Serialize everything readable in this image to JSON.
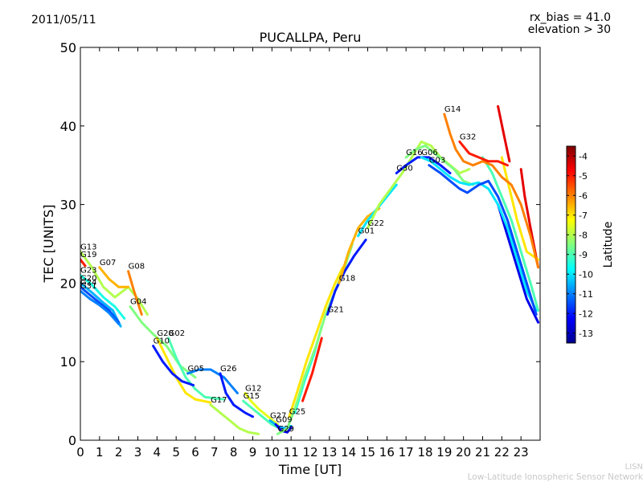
{
  "header": {
    "date": "2011/05/11",
    "rx_bias": "rx_bias = 41.0",
    "elevation": "elevation > 30"
  },
  "footer": {
    "org_short": "LISN",
    "org_long": "Low-Latitude Ionospheric Sensor Network"
  },
  "chart_data": {
    "type": "scatter",
    "title": "PUCALLPA, Peru",
    "xlabel": "Time [UT]",
    "ylabel": "TEC [UNITS]",
    "xlim": [
      0,
      24
    ],
    "ylim": [
      0,
      50
    ],
    "x_ticks": [
      "0",
      "1",
      "2",
      "3",
      "4",
      "5",
      "6",
      "7",
      "8",
      "9",
      "10",
      "11",
      "12",
      "13",
      "14",
      "15",
      "16",
      "17",
      "18",
      "19",
      "20",
      "21",
      "22",
      "23"
    ],
    "y_ticks": [
      "0",
      "10",
      "20",
      "30",
      "40",
      "50"
    ],
    "grid": false,
    "colorbar": {
      "label": "Latitude",
      "min": -13.5,
      "max": -3.5,
      "ticks": [
        "-4",
        "-5",
        "-6",
        "-7",
        "-8",
        "-9",
        "-10",
        "-11",
        "-12",
        "-13"
      ],
      "colors": [
        "#00008f",
        "#0000ff",
        "#0080ff",
        "#00ffff",
        "#80ff80",
        "#ffff00",
        "#ff8000",
        "#ff0000",
        "#800000"
      ]
    },
    "series": [
      {
        "name": "G13",
        "lat": -8.0,
        "points": [
          [
            0.0,
            24.0
          ],
          [
            0.6,
            22.0
          ],
          [
            1.2,
            19.5
          ],
          [
            1.8,
            18.2
          ],
          [
            2.5,
            19.5
          ],
          [
            3.0,
            18.0
          ],
          [
            3.5,
            16.0
          ]
        ]
      },
      {
        "name": "G19",
        "lat": -5.0,
        "points": [
          [
            0.0,
            23.0
          ],
          [
            0.25,
            22.2
          ]
        ]
      },
      {
        "name": "G23",
        "lat": -9.5,
        "points": [
          [
            0.0,
            21.0
          ],
          [
            0.6,
            19.8
          ],
          [
            1.2,
            18.2
          ],
          [
            1.8,
            17.0
          ],
          [
            2.3,
            15.5
          ]
        ]
      },
      {
        "name": "G20",
        "lat": -10.5,
        "points": [
          [
            0.0,
            20.0
          ],
          [
            0.6,
            18.8
          ],
          [
            1.2,
            17.5
          ],
          [
            1.7,
            16.5
          ],
          [
            2.1,
            14.5
          ]
        ]
      },
      {
        "name": "G24",
        "lat": -11.5,
        "points": [
          [
            0.0,
            19.5
          ],
          [
            0.5,
            18.5
          ],
          [
            1.0,
            17.5
          ],
          [
            1.5,
            16.5
          ],
          [
            2.0,
            15.0
          ]
        ]
      },
      {
        "name": "G31",
        "lat": -11.0,
        "points": [
          [
            0.0,
            19.0
          ],
          [
            0.5,
            18.0
          ],
          [
            1.0,
            17.2
          ],
          [
            1.5,
            16.2
          ],
          [
            2.0,
            14.8
          ]
        ]
      },
      {
        "name": "G07",
        "lat": -6.5,
        "points": [
          [
            1.0,
            22.0
          ],
          [
            1.5,
            20.5
          ],
          [
            2.0,
            19.5
          ],
          [
            2.5,
            19.5
          ]
        ]
      },
      {
        "name": "G08",
        "lat": -6.0,
        "points": [
          [
            2.5,
            21.5
          ],
          [
            2.8,
            19.0
          ],
          [
            3.0,
            17.5
          ],
          [
            3.2,
            16.0
          ]
        ]
      },
      {
        "name": "G04",
        "lat": -8.5,
        "points": [
          [
            2.6,
            17.0
          ],
          [
            3.2,
            15.0
          ],
          [
            3.8,
            13.5
          ],
          [
            4.5,
            12.0
          ],
          [
            5.2,
            9.5
          ],
          [
            6.0,
            8.0
          ]
        ]
      },
      {
        "name": "G28",
        "lat": -7.0,
        "points": [
          [
            4.0,
            13.0
          ],
          [
            4.5,
            10.5
          ],
          [
            5.0,
            8.0
          ],
          [
            5.5,
            6.0
          ],
          [
            6.0,
            5.2
          ],
          [
            6.8,
            4.8
          ]
        ]
      },
      {
        "name": "G02",
        "lat": -9.0,
        "points": [
          [
            4.6,
            13.0
          ],
          [
            5.0,
            10.5
          ],
          [
            5.5,
            8.0
          ],
          [
            6.0,
            6.5
          ],
          [
            6.5,
            5.5
          ],
          [
            7.5,
            5.2
          ]
        ]
      },
      {
        "name": "G10",
        "lat": -12.0,
        "points": [
          [
            3.8,
            12.0
          ],
          [
            4.3,
            10.0
          ],
          [
            4.8,
            8.5
          ],
          [
            5.3,
            7.5
          ],
          [
            5.9,
            7.0
          ]
        ]
      },
      {
        "name": "G05",
        "lat": -11.0,
        "points": [
          [
            5.6,
            8.5
          ],
          [
            6.2,
            9.0
          ],
          [
            6.8,
            9.0
          ],
          [
            7.5,
            8.0
          ],
          [
            8.2,
            6.0
          ]
        ]
      },
      {
        "name": "G26",
        "lat": -12.0,
        "points": [
          [
            7.3,
            8.5
          ],
          [
            7.6,
            6.0
          ],
          [
            8.0,
            4.5
          ],
          [
            8.6,
            3.5
          ],
          [
            9.0,
            3.0
          ]
        ]
      },
      {
        "name": "G12",
        "lat": -7.5,
        "points": [
          [
            8.6,
            6.0
          ],
          [
            8.9,
            5.0
          ],
          [
            9.3,
            4.0
          ],
          [
            9.8,
            3.0
          ],
          [
            10.3,
            2.0
          ]
        ]
      },
      {
        "name": "G15",
        "lat": -9.0,
        "points": [
          [
            8.5,
            5.0
          ],
          [
            9.0,
            4.0
          ],
          [
            9.5,
            3.0
          ],
          [
            10.0,
            2.0
          ],
          [
            10.4,
            1.5
          ]
        ]
      },
      {
        "name": "G17",
        "lat": -8.0,
        "points": [
          [
            6.8,
            4.5
          ],
          [
            7.3,
            3.5
          ],
          [
            7.8,
            2.5
          ],
          [
            8.3,
            1.5
          ],
          [
            8.8,
            1.0
          ],
          [
            9.3,
            0.8
          ]
        ]
      },
      {
        "name": "G27",
        "lat": -10.5,
        "points": [
          [
            9.9,
            2.5
          ],
          [
            10.3,
            1.8
          ],
          [
            10.7,
            1.5
          ],
          [
            11.0,
            1.8
          ]
        ]
      },
      {
        "name": "G09",
        "lat": -12.5,
        "points": [
          [
            10.2,
            2.0
          ],
          [
            10.5,
            1.2
          ],
          [
            10.8,
            1.0
          ],
          [
            11.0,
            1.6
          ]
        ]
      },
      {
        "name": "G29",
        "lat": -8.5,
        "points": [
          [
            10.3,
            0.8
          ],
          [
            10.8,
            1.5
          ],
          [
            11.2,
            4.0
          ],
          [
            11.7,
            8.0
          ],
          [
            12.3,
            12.0
          ],
          [
            12.8,
            16.0
          ],
          [
            13.3,
            19.0
          ],
          [
            13.8,
            22.0
          ],
          [
            14.2,
            25.0
          ]
        ]
      },
      {
        "name": "G25",
        "lat": -7.0,
        "points": [
          [
            10.9,
            3.0
          ],
          [
            11.3,
            6.0
          ],
          [
            11.8,
            10.0
          ],
          [
            12.3,
            13.5
          ],
          [
            12.8,
            17.0
          ],
          [
            13.3,
            20.0
          ],
          [
            13.7,
            22.0
          ]
        ]
      },
      {
        "name": "G21",
        "lat": -12.0,
        "points": [
          [
            12.9,
            16.0
          ],
          [
            13.3,
            19.0
          ],
          [
            13.8,
            21.5
          ],
          [
            14.3,
            23.5
          ],
          [
            14.9,
            25.5
          ]
        ]
      },
      {
        "name": "G18",
        "lat": -6.5,
        "points": [
          [
            13.5,
            20.0
          ],
          [
            14.0,
            24.0
          ],
          [
            14.5,
            27.0
          ],
          [
            15.0,
            28.5
          ],
          [
            15.6,
            29.5
          ]
        ]
      },
      {
        "name": "G01",
        "lat": -10.0,
        "points": [
          [
            14.5,
            26.0
          ],
          [
            15.0,
            28.0
          ],
          [
            15.5,
            29.5
          ],
          [
            16.0,
            31.0
          ],
          [
            16.5,
            32.5
          ]
        ]
      },
      {
        "name": "G22",
        "lat": -8.0,
        "points": [
          [
            15.0,
            27.0
          ],
          [
            15.6,
            30.0
          ],
          [
            16.2,
            32.0
          ],
          [
            16.8,
            34.0
          ],
          [
            17.3,
            36.0
          ],
          [
            17.8,
            38.0
          ],
          [
            18.3,
            37.5
          ],
          [
            18.8,
            36.0
          ],
          [
            19.3,
            35.0
          ],
          [
            19.8,
            34.0
          ],
          [
            20.3,
            34.5
          ]
        ]
      },
      {
        "name": "G30",
        "lat": -12.0,
        "points": [
          [
            16.5,
            34.0
          ],
          [
            17.0,
            35.0
          ],
          [
            17.6,
            36.0
          ],
          [
            18.2,
            36.0
          ],
          [
            18.8,
            35.0
          ],
          [
            19.3,
            34.0
          ]
        ]
      },
      {
        "name": "G16",
        "lat": -8.5,
        "points": [
          [
            17.0,
            36.0
          ],
          [
            17.5,
            37.0
          ],
          [
            18.0,
            37.5
          ],
          [
            18.5,
            36.5
          ],
          [
            19.0,
            35.5
          ],
          [
            19.5,
            34.5
          ],
          [
            20.0,
            33.0
          ],
          [
            20.5,
            32.5
          ]
        ]
      },
      {
        "name": "G06",
        "lat": -10.0,
        "points": [
          [
            17.8,
            36.0
          ],
          [
            18.3,
            35.5
          ],
          [
            18.8,
            34.5
          ],
          [
            19.3,
            33.5
          ],
          [
            19.8,
            32.8
          ],
          [
            20.3,
            32.5
          ],
          [
            20.8,
            32.8
          ],
          [
            21.3,
            32.0
          ],
          [
            21.8,
            30.0
          ],
          [
            22.3,
            27.0
          ],
          [
            22.8,
            23.0
          ],
          [
            23.3,
            19.0
          ],
          [
            23.8,
            16.5
          ]
        ]
      },
      {
        "name": "G03",
        "lat": -11.5,
        "points": [
          [
            18.2,
            35.0
          ],
          [
            18.8,
            34.0
          ],
          [
            19.3,
            33.0
          ],
          [
            19.8,
            32.0
          ],
          [
            20.2,
            31.5
          ],
          [
            20.8,
            32.5
          ],
          [
            21.3,
            33.0
          ],
          [
            21.8,
            31.0
          ],
          [
            22.3,
            28.0
          ],
          [
            22.8,
            24.0
          ],
          [
            23.3,
            20.0
          ],
          [
            23.8,
            16.0
          ]
        ]
      },
      {
        "name": "G14",
        "lat": -6.0,
        "points": [
          [
            19.0,
            41.5
          ],
          [
            19.3,
            39.0
          ],
          [
            19.6,
            37.0
          ],
          [
            20.0,
            35.5
          ],
          [
            20.5,
            35.0
          ],
          [
            21.0,
            35.5
          ],
          [
            21.5,
            35.0
          ],
          [
            22.0,
            33.5
          ],
          [
            22.5,
            32.5
          ],
          [
            23.0,
            30.0
          ],
          [
            23.5,
            26.0
          ],
          [
            23.9,
            22.0
          ]
        ]
      },
      {
        "name": "G32",
        "lat": -5.0,
        "points": [
          [
            19.8,
            38.0
          ],
          [
            20.3,
            36.5
          ],
          [
            20.8,
            36.0
          ],
          [
            21.3,
            35.5
          ],
          [
            21.8,
            35.5
          ],
          [
            22.3,
            35.0
          ]
        ]
      }
    ],
    "extra_traces": [
      {
        "lat": -4.5,
        "points": [
          [
            21.8,
            42.5
          ],
          [
            22.1,
            39.0
          ],
          [
            22.4,
            35.5
          ]
        ]
      },
      {
        "lat": -4.5,
        "points": [
          [
            23.0,
            34.5
          ],
          [
            23.2,
            31.0
          ],
          [
            23.5,
            27.0
          ],
          [
            23.9,
            22.0
          ]
        ]
      },
      {
        "lat": -7.0,
        "points": [
          [
            22.0,
            36.0
          ],
          [
            22.4,
            32.0
          ],
          [
            22.8,
            28.0
          ],
          [
            23.3,
            24.0
          ],
          [
            23.9,
            23.0
          ]
        ]
      },
      {
        "lat": -12.5,
        "points": [
          [
            21.8,
            30.0
          ],
          [
            22.3,
            26.0
          ],
          [
            22.8,
            22.0
          ],
          [
            23.3,
            18.0
          ],
          [
            23.9,
            15.0
          ]
        ]
      },
      {
        "lat": -9.0,
        "points": [
          [
            21.0,
            36.0
          ],
          [
            21.5,
            34.0
          ],
          [
            22.0,
            31.0
          ],
          [
            22.5,
            28.0
          ],
          [
            23.0,
            24.0
          ],
          [
            23.5,
            20.0
          ],
          [
            23.9,
            16.5
          ]
        ]
      },
      {
        "lat": -9.5,
        "points": [
          [
            11.2,
            3.5
          ],
          [
            11.7,
            7.5
          ],
          [
            12.2,
            11.0
          ],
          [
            12.6,
            14.5
          ]
        ]
      },
      {
        "lat": -5.0,
        "points": [
          [
            11.6,
            5.0
          ],
          [
            12.1,
            8.5
          ],
          [
            12.6,
            13.0
          ]
        ]
      }
    ]
  }
}
